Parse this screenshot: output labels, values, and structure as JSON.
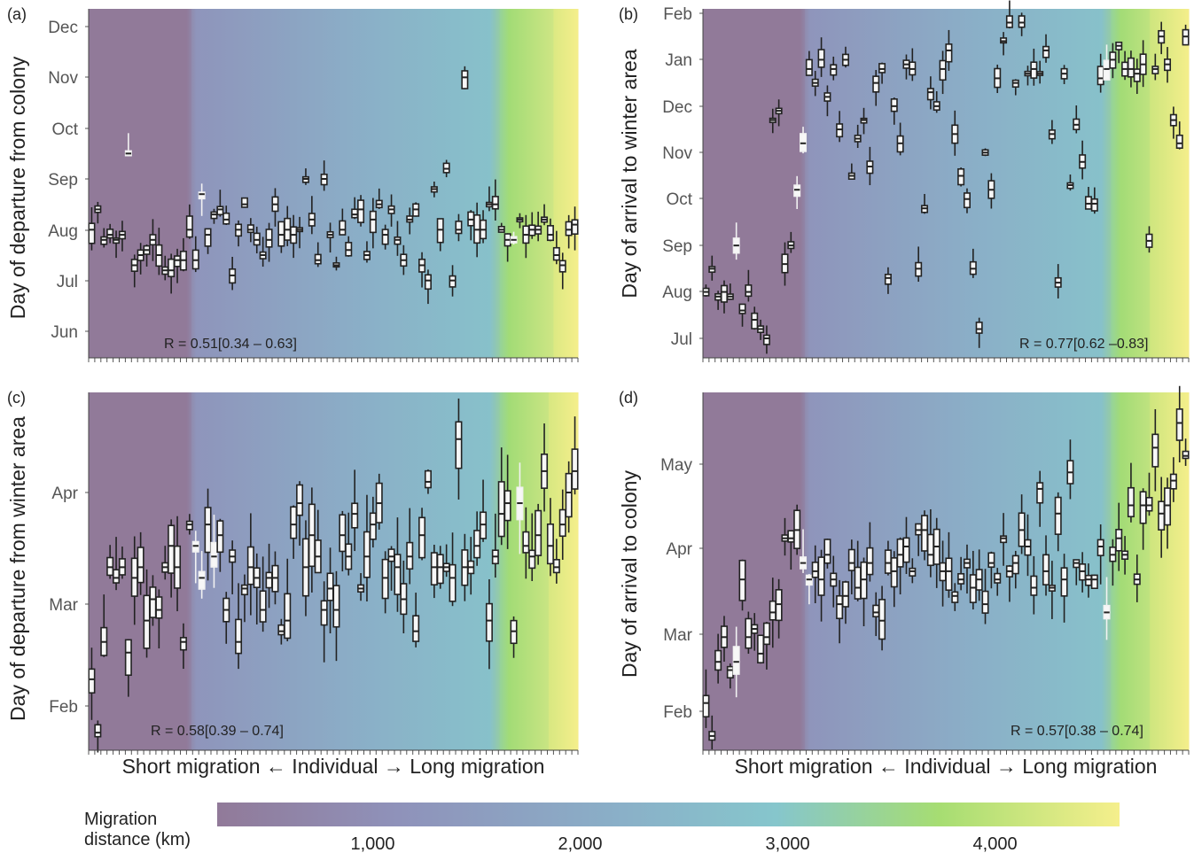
{
  "legend": {
    "title_line1": "Migration",
    "title_line2": "distance (km)",
    "ticks": [
      {
        "label": "1,000",
        "value": 1000
      },
      {
        "label": "2,000",
        "value": 2000
      },
      {
        "label": "3,000",
        "value": 3000
      },
      {
        "label": "4,000",
        "value": 4000
      }
    ],
    "range_km": [
      250,
      4600
    ],
    "colors": [
      "#917a99",
      "#8f92ba",
      "#8ab0c8",
      "#86c6cc",
      "#a6dd72",
      "#f5ef8c"
    ]
  },
  "chart_data": [
    {
      "type": "boxplot",
      "panel": "(a)",
      "ylabel": "Day of departure from colony",
      "xlabel": "",
      "y_ticks": [
        "Jun",
        "Jul",
        "Aug",
        "Sep",
        "Oct",
        "Nov",
        "Dec"
      ],
      "ylim_month_index": [
        -0.1,
        6.3
      ],
      "stat": "R = 0.51[0.34 – 0.63]",
      "stat_position": "bottom-left",
      "color_bands": [
        {
          "from": 0,
          "to": 0.21,
          "color": "#917a99"
        },
        {
          "from": 0.21,
          "to": 0.84,
          "color": "#8ea4c2"
        },
        {
          "from": 0.84,
          "to": 0.95,
          "color": "#8fd48c"
        },
        {
          "from": 0.95,
          "to": 1.0,
          "color": "#f0ea84"
        }
      ],
      "n_individuals": 80,
      "medians_month_index": [
        2.0,
        2.4,
        1.8,
        1.9,
        1.8,
        1.9,
        3.5,
        1.3,
        1.5,
        1.6,
        1.8,
        1.5,
        1.2,
        1.2,
        1.4,
        1.4,
        2.0,
        1.4,
        2.7,
        1.9,
        2.3,
        2.4,
        2.2,
        1.1,
        2.0,
        2.5,
        2.0,
        1.8,
        1.5,
        1.8,
        2.5,
        1.9,
        2.0,
        1.9,
        2.0,
        3.0,
        2.2,
        1.4,
        3.0,
        1.9,
        1.3,
        2.0,
        1.6,
        2.3,
        2.4,
        1.5,
        2.2,
        2.5,
        1.9,
        2.4,
        1.8,
        1.4,
        2.2,
        2.4,
        1.3,
        1.0,
        2.8,
        2.0,
        3.2,
        1.0,
        2.0,
        5.0,
        2.2,
        2.0,
        2.0,
        2.5,
        2.5,
        2.0,
        1.8,
        1.8,
        2.2,
        1.9,
        2.0,
        2.0,
        2.2,
        1.9,
        1.5,
        1.3,
        2.0,
        2.1
      ],
      "special_points": [
        {
          "label": "Nov outlier",
          "month_index": 5.0
        },
        {
          "label": "long whisker",
          "month_index": 4.0
        }
      ]
    },
    {
      "type": "boxplot",
      "panel": "(b)",
      "ylabel": "Day of arrival to winter area",
      "xlabel": "",
      "y_ticks": [
        "Jul",
        "Aug",
        "Sep",
        "Oct",
        "Nov",
        "Dec",
        "Jan",
        "Feb"
      ],
      "ylim_month_index": [
        -0.4,
        7.0
      ],
      "stat": "R = 0.77[0.62 –0.83]",
      "stat_position": "bottom-right",
      "color_bands": [
        {
          "from": 0,
          "to": 0.21,
          "color": "#917a99"
        },
        {
          "from": 0.21,
          "to": 0.84,
          "color": "#8ea4c2"
        },
        {
          "from": 0.84,
          "to": 0.92,
          "color": "#8fd48c"
        },
        {
          "from": 0.92,
          "to": 1.0,
          "color": "#f0ea84"
        }
      ],
      "n_individuals": 80,
      "medians_month_index": [
        1.0,
        1.5,
        0.9,
        1.0,
        0.9,
        2.0,
        0.6,
        1.0,
        0.4,
        0.2,
        0.0,
        4.7,
        4.9,
        1.6,
        2.0,
        3.2,
        4.2,
        5.8,
        5.5,
        6.0,
        5.2,
        5.8,
        4.5,
        6.0,
        3.5,
        4.3,
        4.7,
        3.7,
        5.5,
        5.8,
        1.3,
        5.0,
        4.2,
        5.9,
        5.8,
        1.5,
        2.8,
        5.3,
        5.0,
        5.8,
        6.2,
        4.4,
        3.5,
        3.0,
        1.5,
        0.2,
        4.0,
        3.2,
        5.6,
        6.4,
        6.8,
        5.5,
        6.8,
        5.7,
        5.8,
        5.7,
        6.2,
        4.4,
        1.2,
        5.7,
        3.3,
        4.6,
        3.8,
        2.9,
        2.9,
        5.6,
        5.8,
        6.0,
        6.3,
        5.8,
        5.8,
        5.7,
        5.9,
        2.1,
        5.8,
        6.5,
        5.9,
        4.7,
        4.2,
        6.5
      ],
      "special_points": [
        {
          "label": "Feb top outlier",
          "month_index": 6.7
        }
      ]
    },
    {
      "type": "boxplot",
      "panel": "(c)",
      "ylabel": "Day of departure from winter area",
      "xlabel": "Short migration ← Individual → Long migration",
      "y_ticks": [
        "Feb",
        "Mar",
        "Apr"
      ],
      "ylim_month_index": [
        -0.25,
        2.95
      ],
      "stat": "R = 0.58[0.39 – 0.74]",
      "stat_position": "bottom-left",
      "color_bands": [
        {
          "from": 0,
          "to": 0.21,
          "color": "#917a99"
        },
        {
          "from": 0.21,
          "to": 0.84,
          "color": "#8ea4c2"
        },
        {
          "from": 0.84,
          "to": 0.94,
          "color": "#8fd48c"
        },
        {
          "from": 0.94,
          "to": 1.0,
          "color": "#f0ea84"
        }
      ],
      "n_individuals": 80,
      "medians_month_index": [
        0.25,
        -0.25,
        0.6,
        1.3,
        1.2,
        1.3,
        0.5,
        1.2,
        1.3,
        0.8,
        1.0,
        0.9,
        1.3,
        1.5,
        1.3,
        0.6,
        1.7,
        1.5,
        1.2,
        1.7,
        1.4,
        1.6,
        0.9,
        1.4,
        0.6,
        1.1,
        1.3,
        1.2,
        0.9,
        1.2,
        1.2,
        0.7,
        0.8,
        1.7,
        1.9,
        1.3,
        1.6,
        1.4,
        0.9,
        1.1,
        0.9,
        1.6,
        1.4,
        1.8,
        1.1,
        1.4,
        1.7,
        1.9,
        1.2,
        1.4,
        1.3,
        1.0,
        1.4,
        0.7,
        1.6,
        2.1,
        1.3,
        1.3,
        1.3,
        1.2,
        2.5,
        1.3,
        1.3,
        1.5,
        1.7,
        0.8,
        1.4,
        1.8,
        1.9,
        0.7,
        1.9,
        1.5,
        1.4,
        1.6,
        2.2,
        1.5,
        1.3,
        1.7,
        2.0,
        2.2
      ],
      "special_points": [
        {
          "label": "top outlier",
          "month_index": 2.6
        }
      ]
    },
    {
      "type": "boxplot",
      "panel": "(d)",
      "ylabel": "Day of arrival to colony",
      "xlabel": "Short migration ← Individual → Long migration",
      "y_ticks": [
        "Feb",
        "Mar",
        "Apr",
        "May"
      ],
      "ylim_month_index": [
        -0.3,
        3.8
      ],
      "stat": "R = 0.57[0.38 – 0.74]",
      "stat_position": "bottom-right",
      "color_bands": [
        {
          "from": 0,
          "to": 0.21,
          "color": "#917a99"
        },
        {
          "from": 0.21,
          "to": 0.84,
          "color": "#8ea4c2"
        },
        {
          "from": 0.84,
          "to": 0.92,
          "color": "#8fd48c"
        },
        {
          "from": 0.92,
          "to": 1.0,
          "color": "#f0ea84"
        }
      ],
      "n_individuals": 80,
      "medians_month_index": [
        0.1,
        -0.3,
        0.6,
        0.9,
        0.5,
        0.6,
        1.6,
        0.9,
        1.0,
        0.7,
        0.9,
        1.2,
        1.3,
        2.1,
        2.1,
        2.2,
        1.8,
        1.6,
        1.7,
        1.6,
        1.9,
        1.6,
        1.3,
        1.4,
        1.8,
        1.5,
        1.6,
        1.8,
        1.2,
        1.1,
        1.8,
        1.7,
        1.9,
        2.0,
        1.7,
        2.2,
        2.2,
        1.9,
        2.0,
        1.7,
        1.7,
        1.4,
        1.6,
        1.8,
        1.5,
        1.6,
        1.3,
        1.8,
        1.6,
        2.1,
        1.7,
        1.8,
        2.2,
        2.0,
        1.5,
        2.7,
        1.7,
        1.5,
        2.4,
        1.6,
        2.9,
        1.8,
        1.7,
        1.6,
        1.6,
        2.0,
        1.2,
        1.9,
        2.1,
        1.9,
        2.5,
        1.6,
        2.5,
        2.5,
        3.2,
        2.4,
        2.5,
        2.8,
        3.5,
        3.1
      ],
      "special_points": [
        {
          "label": "top outlier",
          "month_index": 3.6
        }
      ]
    }
  ]
}
